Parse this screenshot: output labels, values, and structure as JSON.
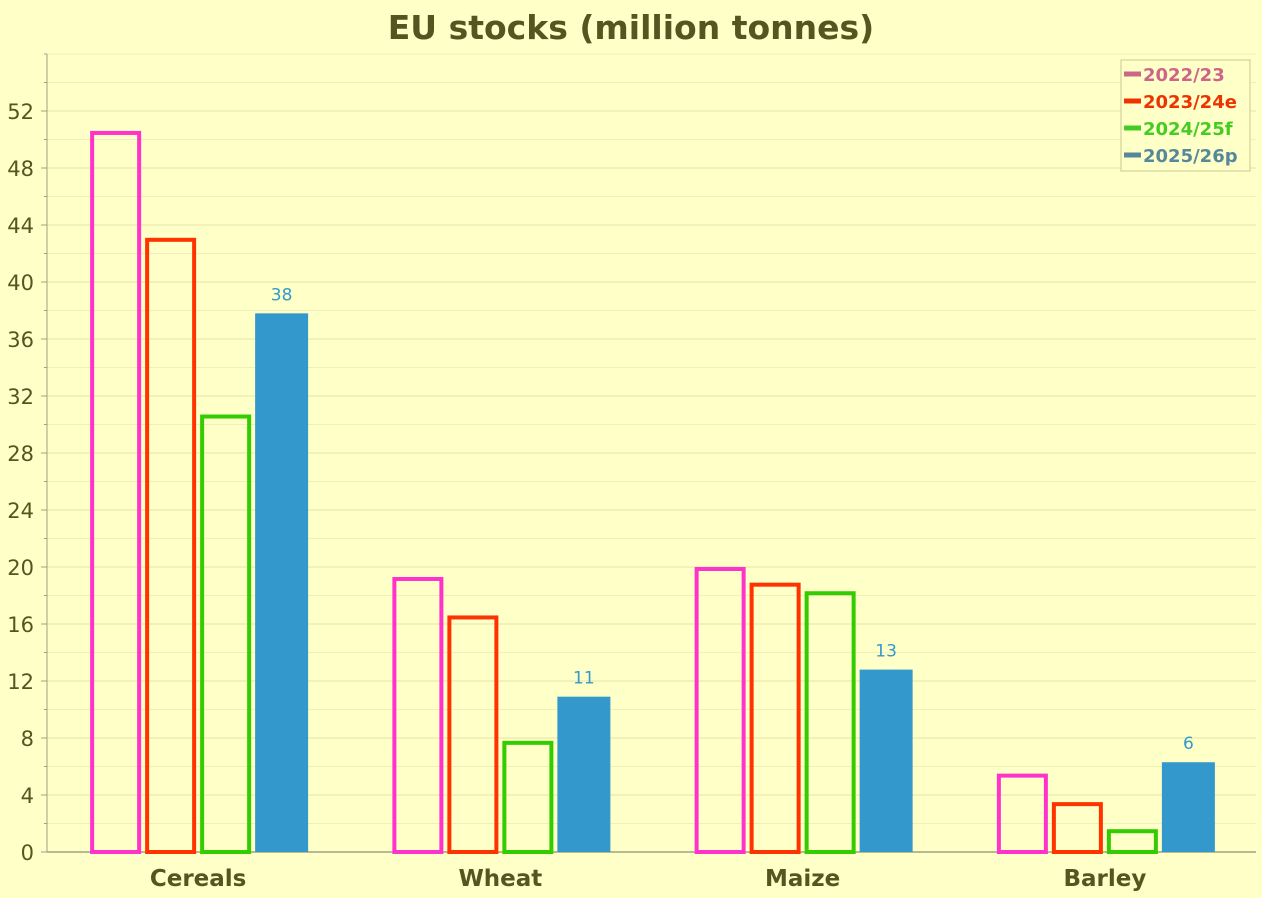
{
  "chart_data": {
    "type": "bar",
    "title": "EU stocks (million tonnes)",
    "xlabel": "",
    "ylabel": "",
    "categories": [
      "Cereals",
      "Wheat",
      "Maize",
      "Barley"
    ],
    "ylim": [
      0,
      56
    ],
    "yticks": [
      0,
      4,
      8,
      12,
      16,
      20,
      24,
      28,
      32,
      36,
      40,
      44,
      48,
      52
    ],
    "grid": true,
    "legend_position": "top-right",
    "series": [
      {
        "name": "2022/23",
        "values": [
          50.6,
          19.3,
          20.0,
          5.5
        ],
        "color": "#ff33cc",
        "legend_color": "#cc6688",
        "style": "outline"
      },
      {
        "name": "2023/24e",
        "values": [
          43.1,
          16.6,
          18.9,
          3.5
        ],
        "color": "#ff3300",
        "legend_color": "#ee3300",
        "style": "outline"
      },
      {
        "name": "2024/25f",
        "values": [
          30.7,
          7.8,
          18.3,
          1.6
        ],
        "color": "#33cc00",
        "legend_color": "#44cc22",
        "style": "outline"
      },
      {
        "name": "2025/26p",
        "values": [
          37.8,
          10.9,
          12.8,
          6.3
        ],
        "color": "#3399cc",
        "legend_color": "#558899",
        "style": "filled",
        "data_labels": [
          "38",
          "11",
          "13",
          "6"
        ]
      }
    ]
  }
}
